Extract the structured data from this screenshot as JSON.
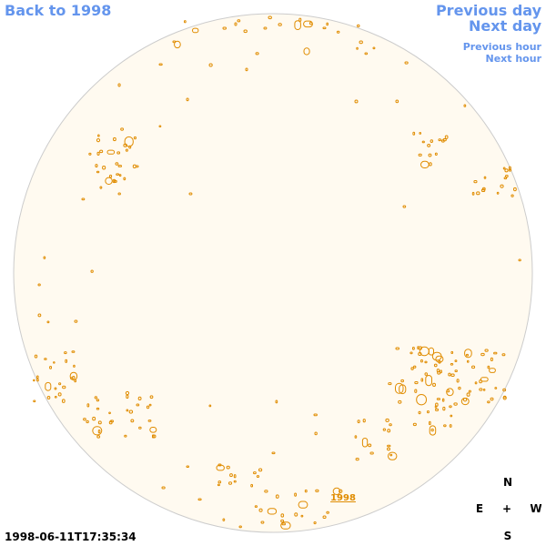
{
  "nav": {
    "back": "Back to 1998",
    "previous_day": "Previous day",
    "next_day": "Next day",
    "previous_hour": "Previous hour",
    "next_hour": "Next hour"
  },
  "disk": {
    "label": "1998",
    "fill_color": "#fffaf0",
    "border_color": "#cccccc",
    "contour_color": "#e08c00"
  },
  "compass": {
    "north": "N",
    "south": "S",
    "east": "E",
    "west": "W",
    "center": "+"
  },
  "timestamp": "1998-06-11T17:35:34"
}
